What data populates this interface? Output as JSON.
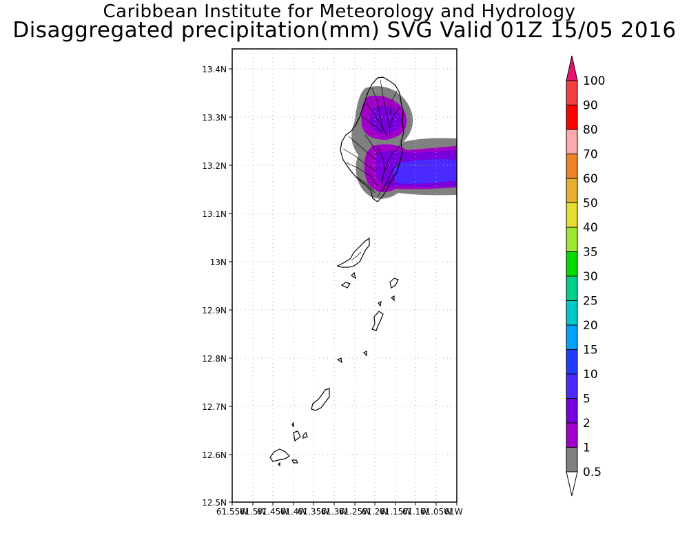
{
  "title": {
    "line1": "Caribbean Institute for Meteorology and Hydrology",
    "line2": "Disaggregated precipitation(mm) SVG Valid 01Z 15/05 2016"
  },
  "map": {
    "lat_ticks": [
      "13.4N",
      "13.3N",
      "13.2N",
      "13.1N",
      "13N",
      "12.9N",
      "12.8N",
      "12.7N",
      "12.6N",
      "12.5N"
    ],
    "lon_ticks": [
      "61.55W",
      "61.5W",
      "61.45W",
      "61.4W",
      "61.35W",
      "61.3W",
      "61.25W",
      "61.2W",
      "61.15W",
      "61.1W",
      "61.05W",
      "61W"
    ],
    "lat_range": [
      12.5,
      13.44
    ],
    "lon_range": [
      -61.55,
      -61.0
    ],
    "grid": true
  },
  "legend": {
    "thresholds": [
      "0.5",
      "1",
      "2",
      "5",
      "10",
      "15",
      "20",
      "25",
      "30",
      "35",
      "40",
      "50",
      "60",
      "70",
      "80",
      "90",
      "100"
    ],
    "colors": [
      "#808080",
      "#a000c8",
      "#7800dc",
      "#4a2aff",
      "#1e3cff",
      "#00a0ff",
      "#00c8c8",
      "#00d08c",
      "#00dc00",
      "#a0e632",
      "#e6dc32",
      "#e6af2d",
      "#f08228",
      "#ffaaaa",
      "#ff0000",
      "#f04040",
      "#e6146e"
    ]
  }
}
